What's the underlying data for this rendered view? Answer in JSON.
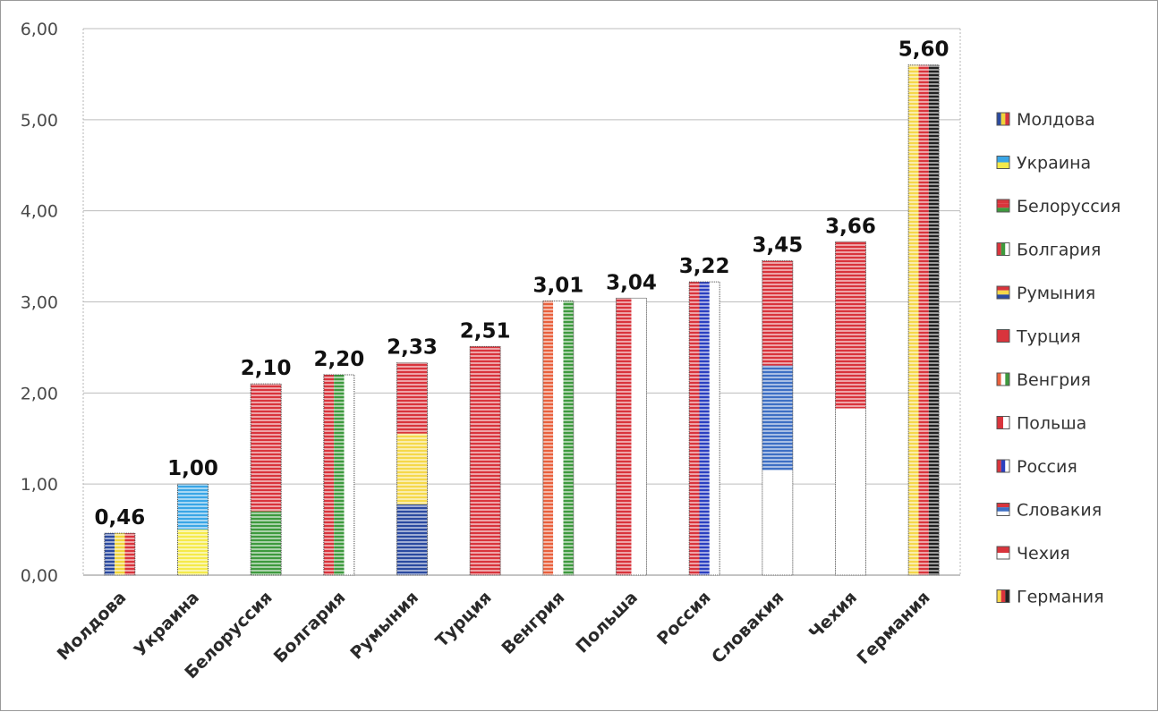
{
  "chart_data": {
    "type": "bar",
    "categories": [
      "Молдова",
      "Украина",
      "Белоруссия",
      "Болгария",
      "Румыния",
      "Турция",
      "Венгрия",
      "Польша",
      "Россия",
      "Словакия",
      "Чехия",
      "Германия"
    ],
    "values": [
      0.46,
      1.0,
      2.1,
      2.2,
      2.33,
      2.51,
      3.01,
      3.04,
      3.22,
      3.45,
      3.66,
      5.6
    ],
    "data_labels": [
      "0,46",
      "1,00",
      "2,10",
      "2,20",
      "2,33",
      "2,51",
      "3,01",
      "3,04",
      "3,22",
      "3,45",
      "3,66",
      "5,60"
    ],
    "title": "",
    "xlabel": "",
    "ylabel": "",
    "ylim": [
      0,
      6
    ],
    "yticks": [
      0,
      1,
      2,
      3,
      4,
      5,
      6
    ],
    "ytick_labels": [
      "0,00",
      "1,00",
      "2,00",
      "3,00",
      "4,00",
      "5,00",
      "6,00"
    ],
    "grid": true,
    "legend_position": "right",
    "legend": [
      "Молдова",
      "Украина",
      "Белоруссия",
      "Болгария",
      "Румыния",
      "Турция",
      "Венгрия",
      "Польша",
      "Россия",
      "Словакия",
      "Чехия",
      "Германия"
    ],
    "flag_fills": [
      {
        "dir": "v",
        "colors": [
          "#2b4aa0",
          "#f0d43a",
          "#d9343c"
        ]
      },
      {
        "dir": "h",
        "colors": [
          "#3aa6e6",
          "#f5ea4a"
        ]
      },
      {
        "dir": "h",
        "colors": [
          "#d9343c",
          "#d9343c",
          "#3e9a3e"
        ]
      },
      {
        "dir": "v",
        "colors": [
          "#d9343c",
          "#3e9a3e",
          "#ffffff"
        ]
      },
      {
        "dir": "h",
        "colors": [
          "#d9343c",
          "#f5d84a",
          "#2b4aa0"
        ]
      },
      {
        "dir": "h",
        "colors": [
          "#d9343c"
        ]
      },
      {
        "dir": "v",
        "colors": [
          "#e9603c",
          "#ffffff",
          "#3e9a3e"
        ]
      },
      {
        "dir": "v",
        "colors": [
          "#d9343c",
          "#ffffff"
        ]
      },
      {
        "dir": "v",
        "colors": [
          "#d9343c",
          "#2b3fc0",
          "#ffffff"
        ]
      },
      {
        "dir": "h",
        "colors": [
          "#d9343c",
          "#3d6fc4",
          "#ffffff"
        ]
      },
      {
        "dir": "h",
        "colors": [
          "#d9343c",
          "#ffffff"
        ]
      },
      {
        "dir": "v",
        "colors": [
          "#f5d84a",
          "#d9343c",
          "#222222"
        ]
      }
    ]
  }
}
